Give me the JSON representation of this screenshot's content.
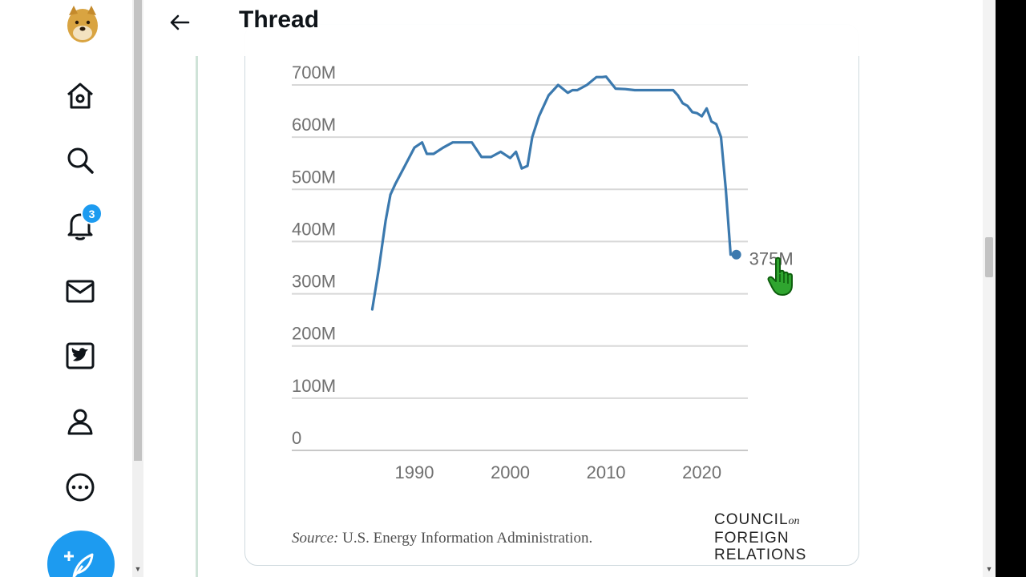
{
  "header": {
    "title": "Thread",
    "back_icon": "arrow-left-icon"
  },
  "nav": {
    "items": [
      {
        "name": "home",
        "icon": "home-icon"
      },
      {
        "name": "explore",
        "icon": "search-icon"
      },
      {
        "name": "notifications",
        "icon": "bell-icon",
        "badge": "3"
      },
      {
        "name": "messages",
        "icon": "envelope-icon"
      },
      {
        "name": "twitter-blue",
        "icon": "twitter-bird-icon"
      },
      {
        "name": "profile",
        "icon": "person-icon"
      },
      {
        "name": "more",
        "icon": "more-icon"
      }
    ],
    "compose_icon": "feather-plus-icon",
    "accent": "#1d9bf0"
  },
  "chart_data": {
    "type": "line",
    "title": "",
    "xlabel": "",
    "ylabel": "",
    "x_ticks": [
      "1990",
      "2000",
      "2010",
      "2020"
    ],
    "y_ticks": [
      "0",
      "100M",
      "200M",
      "300M",
      "400M",
      "500M",
      "600M",
      "700M"
    ],
    "xlim": [
      1977.2,
      2024.8
    ],
    "ylim": [
      0,
      700
    ],
    "series": [
      {
        "name": "",
        "color": "#3b79ae",
        "x": [
          1985.6,
          1986.3,
          1987,
          1987.5,
          1988,
          1989,
          1990,
          1990.8,
          1991.3,
          1992,
          1993,
          1994,
          1995,
          1996,
          1997,
          1998,
          1999,
          2000,
          2000.6,
          2001.2,
          2001.8,
          2002.3,
          2003,
          2004,
          2005,
          2006,
          2006.5,
          2007,
          2008,
          2009,
          2009.6,
          2010,
          2011,
          2012,
          2013,
          2014,
          2015,
          2016,
          2017,
          2017.5,
          2018,
          2018.5,
          2019,
          2019.5,
          2020,
          2020.5,
          2021,
          2021.5,
          2022,
          2022.5,
          2023,
          2023.6
        ],
        "values": [
          270,
          350,
          440,
          490,
          510,
          545,
          580,
          590,
          568,
          568,
          580,
          590,
          590,
          590,
          562,
          562,
          572,
          560,
          572,
          540,
          545,
          600,
          640,
          680,
          700,
          685,
          690,
          690,
          700,
          715,
          715,
          716,
          693,
          692,
          690,
          690,
          690,
          690,
          690,
          680,
          665,
          660,
          648,
          646,
          640,
          655,
          630,
          625,
          600,
          500,
          375,
          375
        ]
      }
    ],
    "annotations": [
      {
        "x": 2023.6,
        "y": 375,
        "label": "375M"
      }
    ],
    "source_label": "Source:",
    "source_text": "U.S. Energy Information Administration."
  },
  "logo": {
    "line1": "COUNCIL",
    "on": "on",
    "line2": "FOREIGN",
    "line3": "RELATIONS"
  }
}
